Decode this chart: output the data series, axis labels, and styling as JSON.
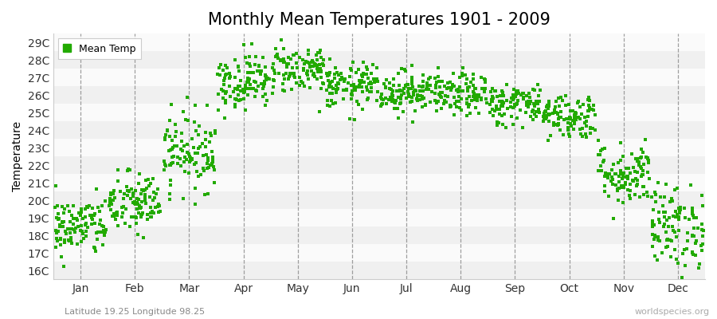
{
  "title": "Monthly Mean Temperatures 1901 - 2009",
  "ylabel": "Temperature",
  "xlabel_bottom": "Latitude 19.25 Longitude 98.25",
  "watermark": "worldspecies.org",
  "legend_label": "Mean Temp",
  "dot_color": "#22aa00",
  "background_color": "#ffffff",
  "plot_bg_color": "#ffffff",
  "band_color_even": "#f0f0f0",
  "band_color_odd": "#fafafa",
  "ytick_labels": [
    "16C",
    "17C",
    "18C",
    "19C",
    "20C",
    "21C",
    "22C",
    "23C",
    "24C",
    "25C",
    "26C",
    "27C",
    "28C",
    "29C"
  ],
  "ytick_values": [
    16,
    17,
    18,
    19,
    20,
    21,
    22,
    23,
    24,
    25,
    26,
    27,
    28,
    29
  ],
  "ylim": [
    15.5,
    29.5
  ],
  "months": [
    "Jan",
    "Feb",
    "Mar",
    "Apr",
    "May",
    "Jun",
    "Jul",
    "Aug",
    "Sep",
    "Oct",
    "Nov",
    "Dec"
  ],
  "month_means": [
    18.5,
    19.8,
    22.8,
    26.8,
    27.5,
    26.5,
    26.2,
    26.0,
    25.5,
    24.8,
    21.5,
    18.5
  ],
  "month_stds": [
    0.85,
    0.9,
    1.1,
    0.8,
    0.7,
    0.65,
    0.6,
    0.6,
    0.6,
    0.65,
    0.9,
    1.2
  ],
  "n_years": 109,
  "title_fontsize": 15,
  "axis_fontsize": 10,
  "tick_fontsize": 10,
  "dot_size": 5,
  "vline_color": "#888888",
  "vline_lw": 0.9
}
